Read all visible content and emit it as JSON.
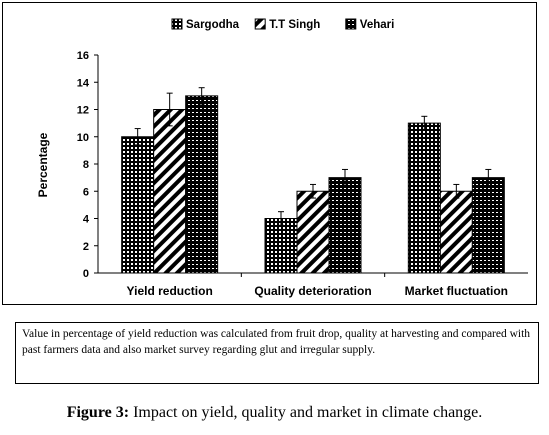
{
  "chart_data": {
    "type": "bar",
    "title": "",
    "xlabel": "",
    "ylabel": "Percentage",
    "ylim": [
      0,
      16
    ],
    "yticks": [
      0,
      2,
      4,
      6,
      8,
      10,
      12,
      14,
      16
    ],
    "grid": false,
    "legend_position": "top",
    "categories": [
      "Yield reduction",
      "Quality deterioration",
      "Market fluctuation"
    ],
    "series": [
      {
        "name": "Sargodha",
        "values": [
          10,
          4,
          11
        ],
        "errors": [
          0.6,
          0.5,
          0.5
        ],
        "pattern": "dots"
      },
      {
        "name": "T.T Singh",
        "values": [
          12,
          6,
          6
        ],
        "errors": [
          1.2,
          0.5,
          0.5
        ],
        "pattern": "diagonal"
      },
      {
        "name": "Vehari",
        "values": [
          13,
          7,
          7
        ],
        "errors": [
          0.6,
          0.6,
          0.6
        ],
        "pattern": "grid"
      }
    ]
  },
  "note": {
    "text": "Value in percentage of yield reduction was calculated from fruit drop, quality at harvesting and compared with past farmers data and also market survey regarding glut and irregular supply."
  },
  "caption": {
    "label": "Figure 3:",
    "text": " Impact on yield, quality and market in climate change."
  }
}
